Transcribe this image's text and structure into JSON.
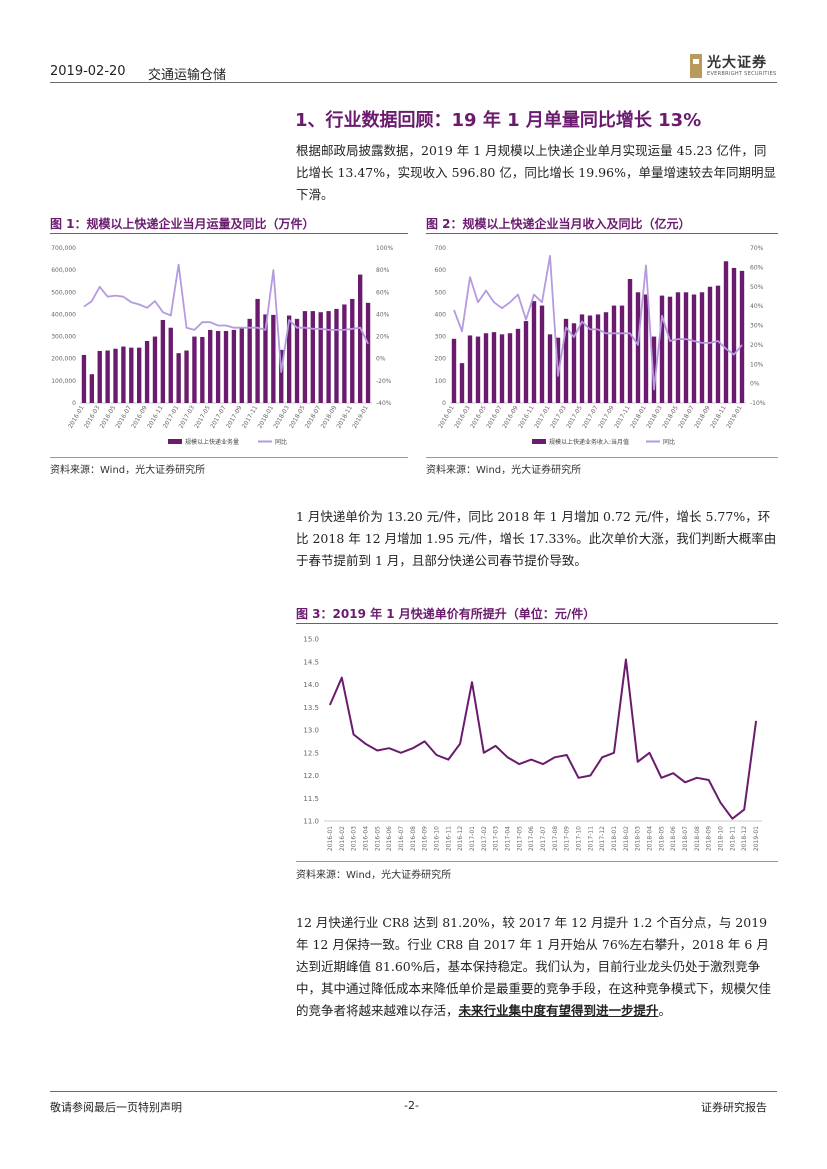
{
  "header": {
    "date": "2019-02-20",
    "sector": "交通运输仓储",
    "logo_cn": "光大证券",
    "logo_en": "EVERBRIGHT SECURITIES"
  },
  "section_title": "1、行业数据回顾：19 年 1 月单量同比增长 13%",
  "paragraph1": "根据邮政局披露数据，2019 年 1 月规模以上快递企业单月实现运量 45.23 亿件，同比增长 13.47%，实现收入 596.80 亿，同比增长 19.96%，单量增速较去年同期明显下滑。",
  "paragraph2": "1 月快递单价为 13.20 元/件，同比 2018 年 1 月增加 0.72 元/件，增长 5.77%，环比 2018 年 12 月增加 1.95 元/件，增长 17.33%。此次单价大涨，我们判断大概率由于春节提前到 1 月，且部分快递公司春节提价导致。",
  "paragraph3_text": "12 月快递行业 CR8 达到 81.20%，较 2017 年 12 月提升 1.2 个百分点，与 2019 年 12 月保持一致。行业 CR8 自 2017 年 1 月开始从 76%左右攀升，2018 年 6 月达到近期峰值 81.60%后，基本保持稳定。我们认为，目前行业龙头仍处于激烈竞争中，其中通过降低成本来降低单价是最重要的竞争手段，在这种竞争模式下，规模欠佳的竞争者将越来越难以存活，",
  "paragraph3_emph": "未来行业集中度有望得到进一步提升",
  "paragraph3_end": "。",
  "figures": {
    "fig1_title": "图 1：规模以上快递企业当月运量及同比（万件）",
    "fig2_title": "图 2：规模以上快递企业当月收入及同比（亿元）",
    "fig3_title": "图 3：2019 年 1 月快递单价有所提升（单位：元/件）",
    "source": "资料来源：Wind，光大证券研究所"
  },
  "footer": {
    "left": "敬请参阅最后一页特别声明",
    "center": "-2-",
    "right": "证券研究报告"
  },
  "colors": {
    "bar": "#6a1b6e",
    "line": "#b59ae0",
    "accent": "#6a1b6e"
  },
  "chart_data": [
    {
      "type": "bar",
      "categories": [
        "2016-01",
        "2016-02",
        "2016-03",
        "2016-04",
        "2016-05",
        "2016-06",
        "2016-07",
        "2016-08",
        "2016-09",
        "2016-10",
        "2016-11",
        "2016-12",
        "2017-01",
        "2017-02",
        "2017-03",
        "2017-04",
        "2017-05",
        "2017-06",
        "2017-07",
        "2017-08",
        "2017-09",
        "2017-10",
        "2017-11",
        "2017-12",
        "2018-01",
        "2018-02",
        "2018-03",
        "2018-04",
        "2018-05",
        "2018-06",
        "2018-07",
        "2018-08",
        "2018-09",
        "2018-10",
        "2018-11",
        "2018-12",
        "2019-01"
      ],
      "x_tick_labels": [
        "2016-01",
        "2016-03",
        "2016-05",
        "2016-07",
        "2016-09",
        "2016-11",
        "2017-01",
        "2017-03",
        "2017-05",
        "2017-07",
        "2017-09",
        "2017-11",
        "2018-01",
        "2018-03",
        "2018-05",
        "2018-07",
        "2018-09",
        "2018-11",
        "2019-01"
      ],
      "series": [
        {
          "name": "规模以上快递业务量",
          "kind": "bar",
          "axis": "left",
          "values": [
            217000,
            130000,
            235000,
            237000,
            245000,
            255000,
            250000,
            250000,
            280000,
            300000,
            375000,
            340000,
            225000,
            237000,
            300000,
            298000,
            330000,
            325000,
            325000,
            330000,
            340000,
            380000,
            470000,
            400000,
            398000,
            240000,
            395000,
            380000,
            415000,
            415000,
            410000,
            415000,
            425000,
            445000,
            470000,
            580000,
            452300
          ]
        },
        {
          "name": "同比",
          "kind": "line",
          "axis": "right",
          "values": [
            47,
            52,
            65,
            56,
            57,
            56,
            51,
            49,
            46,
            52,
            42,
            39,
            85,
            28,
            26,
            33,
            33,
            30,
            30,
            28,
            28,
            28,
            28,
            26,
            80,
            -12,
            35,
            28,
            28,
            27,
            27,
            26,
            26,
            26,
            27,
            28,
            13.5
          ]
        }
      ],
      "ylim_left": [
        0,
        700000
      ],
      "ylim_right": [
        -40,
        100
      ],
      "yticks_left": [
        "700,000",
        "600,000",
        "500,000",
        "400,000",
        "300,000",
        "200,000",
        "100,000",
        "0"
      ],
      "yticks_right": [
        "100%",
        "80%",
        "60%",
        "40%",
        "20%",
        "0%",
        "-20%",
        "-40%"
      ],
      "legend_placement": "bottom"
    },
    {
      "type": "bar",
      "categories": [
        "2016-01",
        "2016-02",
        "2016-03",
        "2016-04",
        "2016-05",
        "2016-06",
        "2016-07",
        "2016-08",
        "2016-09",
        "2016-10",
        "2016-11",
        "2016-12",
        "2017-01",
        "2017-02",
        "2017-03",
        "2017-04",
        "2017-05",
        "2017-06",
        "2017-07",
        "2017-08",
        "2017-09",
        "2017-10",
        "2017-11",
        "2017-12",
        "2018-01",
        "2018-02",
        "2018-03",
        "2018-04",
        "2018-05",
        "2018-06",
        "2018-07",
        "2018-08",
        "2018-09",
        "2018-10",
        "2018-11",
        "2018-12",
        "2019-01"
      ],
      "x_tick_labels": [
        "2016-01",
        "2016-03",
        "2016-05",
        "2016-07",
        "2016-09",
        "2016-11",
        "2017-01",
        "2017-03",
        "2017-05",
        "2017-07",
        "2017-09",
        "2017-11",
        "2018-01",
        "2018-03",
        "2018-05",
        "2018-07",
        "2018-09",
        "2018-11",
        "2019-01"
      ],
      "series": [
        {
          "name": "规模以上快递业务收入:当月值",
          "kind": "bar",
          "axis": "left",
          "values": [
            290,
            180,
            305,
            300,
            315,
            320,
            310,
            315,
            335,
            370,
            460,
            440,
            310,
            295,
            380,
            360,
            400,
            395,
            400,
            410,
            440,
            440,
            560,
            500,
            490,
            300,
            485,
            480,
            500,
            500,
            490,
            500,
            525,
            530,
            640,
            610,
            596.8
          ]
        },
        {
          "name": "同比",
          "kind": "line",
          "axis": "right",
          "values": [
            38,
            27,
            55,
            42,
            48,
            42,
            39,
            42,
            46,
            33,
            46,
            42,
            66,
            4,
            29,
            24,
            32,
            28,
            28,
            26,
            26,
            26,
            26,
            20,
            61,
            -3,
            35,
            22,
            23,
            23,
            22,
            21,
            21,
            22,
            18,
            15,
            20
          ]
        }
      ],
      "ylim_left": [
        0,
        700
      ],
      "ylim_right": [
        -10,
        70
      ],
      "yticks_left": [
        "700",
        "600",
        "500",
        "400",
        "300",
        "200",
        "100",
        "0"
      ],
      "yticks_right": [
        "70%",
        "60%",
        "50%",
        "40%",
        "30%",
        "20%",
        "10%",
        "0%",
        "-10%"
      ],
      "legend_placement": "bottom"
    },
    {
      "type": "line",
      "categories": [
        "2016-01",
        "2016-02",
        "2016-03",
        "2016-04",
        "2016-05",
        "2016-06",
        "2016-07",
        "2016-08",
        "2016-09",
        "2016-10",
        "2016-11",
        "2016-12",
        "2017-01",
        "2017-02",
        "2017-03",
        "2017-04",
        "2017-05",
        "2017-06",
        "2017-07",
        "2017-08",
        "2017-09",
        "2017-10",
        "2017-11",
        "2017-12",
        "2018-01",
        "2018-02",
        "2018-03",
        "2018-04",
        "2018-05",
        "2018-06",
        "2018-07",
        "2018-08",
        "2018-09",
        "2018-10",
        "2018-11",
        "2018-12",
        "2019-01"
      ],
      "series": [
        {
          "values": [
            13.55,
            14.15,
            12.9,
            12.7,
            12.55,
            12.6,
            12.5,
            12.6,
            12.75,
            12.45,
            12.35,
            12.7,
            14.05,
            12.5,
            12.65,
            12.4,
            12.25,
            12.35,
            12.25,
            12.4,
            12.45,
            11.95,
            12.0,
            12.4,
            12.5,
            14.55,
            12.3,
            12.5,
            11.95,
            12.05,
            11.85,
            11.95,
            11.9,
            11.4,
            11.05,
            11.25,
            13.2
          ]
        }
      ],
      "ylim": [
        11.0,
        15.0
      ],
      "yticks": [
        "15.0",
        "14.5",
        "14.0",
        "13.5",
        "13.0",
        "12.5",
        "12.0",
        "11.5",
        "11.0"
      ],
      "grid": false
    }
  ]
}
